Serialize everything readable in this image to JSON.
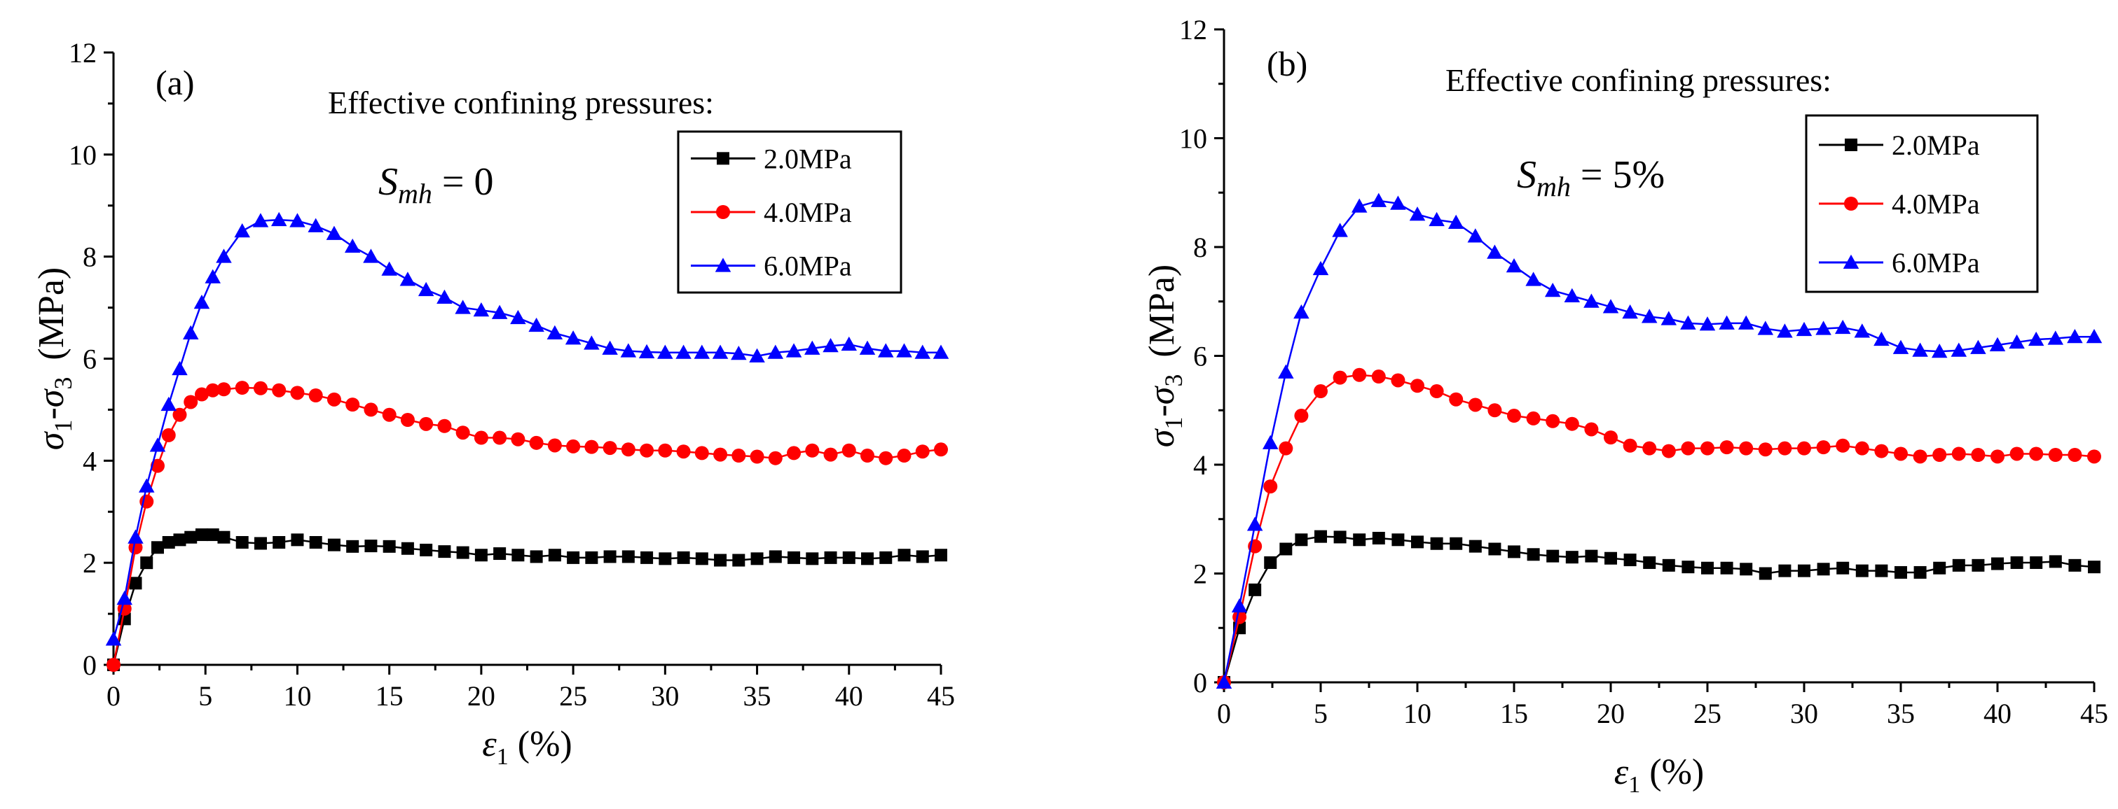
{
  "chart_data": [
    {
      "type": "line",
      "panel_label": "(a)",
      "annotation": "Effective confining pressures:",
      "smh_symbol": "S",
      "smh_sub": "mh",
      "smh_value": " = 0",
      "x_symbol": "ε",
      "x_sub": "1",
      "x_unit": " (%)",
      "y_s1": "σ",
      "y_s1_sub": "1",
      "y_dash": "-",
      "y_s3": "σ",
      "y_s3_sub": "3",
      "y_unit": "(MPa)",
      "xlim": [
        0,
        45
      ],
      "ylim": [
        0,
        12
      ],
      "xticks": [
        "0",
        "5",
        "10",
        "15",
        "20",
        "25",
        "30",
        "35",
        "40",
        "45"
      ],
      "yticks": [
        "0",
        "2",
        "4",
        "6",
        "8",
        "10",
        "12"
      ],
      "series": [
        {
          "name": "2.0MPa",
          "color": "#000000",
          "marker": "square",
          "x": [
            0,
            0.6,
            1.2,
            1.8,
            2.4,
            3,
            3.6,
            4.2,
            4.8,
            5.4,
            6,
            7,
            8,
            9,
            10,
            11,
            12,
            13,
            14,
            15,
            16,
            17,
            18,
            19,
            20,
            21,
            22,
            23,
            24,
            25,
            26,
            27,
            28,
            29,
            30,
            31,
            32,
            33,
            34,
            35,
            36,
            37,
            38,
            39,
            40,
            41,
            42,
            43,
            44,
            45
          ],
          "y": [
            0,
            0.9,
            1.6,
            2.0,
            2.3,
            2.4,
            2.45,
            2.5,
            2.55,
            2.55,
            2.5,
            2.4,
            2.38,
            2.4,
            2.45,
            2.4,
            2.35,
            2.32,
            2.33,
            2.32,
            2.28,
            2.25,
            2.22,
            2.2,
            2.15,
            2.18,
            2.15,
            2.12,
            2.15,
            2.1,
            2.1,
            2.12,
            2.12,
            2.1,
            2.08,
            2.1,
            2.08,
            2.05,
            2.05,
            2.08,
            2.12,
            2.1,
            2.08,
            2.1,
            2.1,
            2.08,
            2.1,
            2.15,
            2.12,
            2.15
          ]
        },
        {
          "name": "4.0MPa",
          "color": "#ff0000",
          "marker": "circle",
          "x": [
            0,
            0.6,
            1.2,
            1.8,
            2.4,
            3,
            3.6,
            4.2,
            4.8,
            5.4,
            6,
            7,
            8,
            9,
            10,
            11,
            12,
            13,
            14,
            15,
            16,
            17,
            18,
            19,
            20,
            21,
            22,
            23,
            24,
            25,
            26,
            27,
            28,
            29,
            30,
            31,
            32,
            33,
            34,
            35,
            36,
            37,
            38,
            39,
            40,
            41,
            42,
            43,
            44,
            45
          ],
          "y": [
            0,
            1.1,
            2.3,
            3.2,
            3.9,
            4.5,
            4.9,
            5.15,
            5.3,
            5.38,
            5.4,
            5.43,
            5.42,
            5.38,
            5.33,
            5.28,
            5.2,
            5.1,
            5.0,
            4.9,
            4.8,
            4.72,
            4.68,
            4.55,
            4.45,
            4.45,
            4.42,
            4.35,
            4.3,
            4.28,
            4.27,
            4.25,
            4.22,
            4.2,
            4.2,
            4.18,
            4.15,
            4.12,
            4.1,
            4.08,
            4.05,
            4.15,
            4.2,
            4.12,
            4.2,
            4.1,
            4.05,
            4.1,
            4.18,
            4.22
          ]
        },
        {
          "name": "6.0MPa",
          "color": "#0000ff",
          "marker": "triangle",
          "x": [
            0,
            0.6,
            1.2,
            1.8,
            2.4,
            3,
            3.6,
            4.2,
            4.8,
            5.4,
            6,
            7,
            8,
            9,
            10,
            11,
            12,
            13,
            14,
            15,
            16,
            17,
            18,
            19,
            20,
            21,
            22,
            23,
            24,
            25,
            26,
            27,
            28,
            29,
            30,
            31,
            32,
            33,
            34,
            35,
            36,
            37,
            38,
            39,
            40,
            41,
            42,
            43,
            44,
            45
          ],
          "y": [
            0.5,
            1.3,
            2.5,
            3.5,
            4.3,
            5.1,
            5.8,
            6.5,
            7.1,
            7.6,
            8.0,
            8.5,
            8.7,
            8.72,
            8.7,
            8.6,
            8.45,
            8.2,
            8.0,
            7.75,
            7.55,
            7.35,
            7.2,
            7.0,
            6.95,
            6.9,
            6.8,
            6.65,
            6.5,
            6.4,
            6.3,
            6.2,
            6.15,
            6.13,
            6.12,
            6.12,
            6.12,
            6.12,
            6.1,
            6.05,
            6.12,
            6.15,
            6.2,
            6.25,
            6.28,
            6.2,
            6.15,
            6.15,
            6.12,
            6.12
          ]
        }
      ]
    },
    {
      "type": "line",
      "panel_label": "(b)",
      "annotation": "Effective confining pressures:",
      "smh_symbol": "S",
      "smh_sub": "mh",
      "smh_value": " = 5%",
      "x_symbol": "ε",
      "x_sub": "1",
      "x_unit": " (%)",
      "y_s1": "σ",
      "y_s1_sub": "1",
      "y_dash": "-",
      "y_s3": "σ",
      "y_s3_sub": "3",
      "y_unit": "(MPa)",
      "xlim": [
        0,
        45
      ],
      "ylim": [
        0,
        12
      ],
      "xticks": [
        "0",
        "5",
        "10",
        "15",
        "20",
        "25",
        "30",
        "35",
        "40",
        "45"
      ],
      "yticks": [
        "0",
        "2",
        "4",
        "6",
        "8",
        "10",
        "12"
      ],
      "series": [
        {
          "name": "2.0MPa",
          "color": "#000000",
          "marker": "square",
          "x": [
            0,
            0.8,
            1.6,
            2.4,
            3.2,
            4,
            5,
            6,
            7,
            8,
            9,
            10,
            11,
            12,
            13,
            14,
            15,
            16,
            17,
            18,
            19,
            20,
            21,
            22,
            23,
            24,
            25,
            26,
            27,
            28,
            29,
            30,
            31,
            32,
            33,
            34,
            35,
            36,
            37,
            38,
            39,
            40,
            41,
            42,
            43,
            44,
            45
          ],
          "y": [
            0,
            1.0,
            1.7,
            2.2,
            2.45,
            2.62,
            2.68,
            2.67,
            2.62,
            2.65,
            2.62,
            2.58,
            2.55,
            2.55,
            2.5,
            2.45,
            2.4,
            2.35,
            2.32,
            2.3,
            2.32,
            2.28,
            2.25,
            2.2,
            2.15,
            2.12,
            2.1,
            2.1,
            2.08,
            2.0,
            2.05,
            2.05,
            2.08,
            2.1,
            2.05,
            2.05,
            2.02,
            2.02,
            2.1,
            2.15,
            2.15,
            2.18,
            2.2,
            2.2,
            2.22,
            2.15,
            2.12
          ]
        },
        {
          "name": "4.0MPa",
          "color": "#ff0000",
          "marker": "circle",
          "x": [
            0,
            0.8,
            1.6,
            2.4,
            3.2,
            4,
            5,
            6,
            7,
            8,
            9,
            10,
            11,
            12,
            13,
            14,
            15,
            16,
            17,
            18,
            19,
            20,
            21,
            22,
            23,
            24,
            25,
            26,
            27,
            28,
            29,
            30,
            31,
            32,
            33,
            34,
            35,
            36,
            37,
            38,
            39,
            40,
            41,
            42,
            43,
            44,
            45
          ],
          "y": [
            0,
            1.2,
            2.5,
            3.6,
            4.3,
            4.9,
            5.35,
            5.6,
            5.65,
            5.62,
            5.55,
            5.45,
            5.35,
            5.2,
            5.1,
            5.0,
            4.9,
            4.85,
            4.8,
            4.75,
            4.65,
            4.5,
            4.35,
            4.3,
            4.25,
            4.3,
            4.3,
            4.32,
            4.3,
            4.28,
            4.3,
            4.3,
            4.32,
            4.35,
            4.3,
            4.25,
            4.2,
            4.15,
            4.18,
            4.2,
            4.18,
            4.15,
            4.2,
            4.2,
            4.18,
            4.18,
            4.15
          ]
        },
        {
          "name": "6.0MPa",
          "color": "#0000ff",
          "marker": "triangle",
          "x": [
            0,
            0.8,
            1.6,
            2.4,
            3.2,
            4,
            5,
            6,
            7,
            8,
            9,
            10,
            11,
            12,
            13,
            14,
            15,
            16,
            17,
            18,
            19,
            20,
            21,
            22,
            23,
            24,
            25,
            26,
            27,
            28,
            29,
            30,
            31,
            32,
            33,
            34,
            35,
            36,
            37,
            38,
            39,
            40,
            41,
            42,
            43,
            44,
            45
          ],
          "y": [
            0,
            1.4,
            2.9,
            4.4,
            5.7,
            6.8,
            7.6,
            8.3,
            8.75,
            8.85,
            8.8,
            8.6,
            8.5,
            8.45,
            8.2,
            7.9,
            7.65,
            7.4,
            7.2,
            7.1,
            7.0,
            6.9,
            6.8,
            6.72,
            6.68,
            6.6,
            6.58,
            6.6,
            6.6,
            6.5,
            6.45,
            6.48,
            6.5,
            6.52,
            6.45,
            6.3,
            6.15,
            6.1,
            6.08,
            6.1,
            6.15,
            6.2,
            6.25,
            6.3,
            6.32,
            6.35,
            6.35
          ]
        }
      ]
    }
  ]
}
